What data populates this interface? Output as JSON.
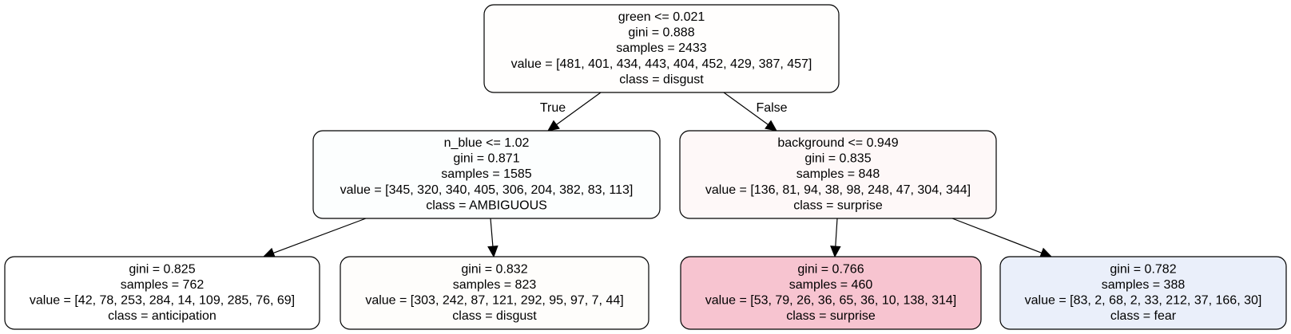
{
  "tree": {
    "nodes": [
      {
        "id": "root",
        "fill": "#fffefd",
        "lines": [
          "green <= 0.021",
          "gini = 0.888",
          "samples = 2433",
          "value = [481, 401, 434, 443, 404, 452, 429, 387, 457]",
          "class = disgust"
        ]
      },
      {
        "id": "left",
        "fill": "#fcfefe",
        "lines": [
          "n_blue <= 1.02",
          "gini = 0.871",
          "samples = 1585",
          "value = [345, 320, 340, 405, 306, 204, 382, 83, 113]",
          "class = AMBIGUOUS"
        ]
      },
      {
        "id": "right",
        "fill": "#fef8f8",
        "lines": [
          "background <= 0.949",
          "gini = 0.835",
          "samples = 848",
          "value = [136, 81, 94, 38, 98, 248, 47, 304, 344]",
          "class = surprise"
        ]
      },
      {
        "id": "leaf-1",
        "fill": "#ffffff",
        "lines": [
          "gini = 0.825",
          "samples = 762",
          "value = [42, 78, 253, 284, 14, 109, 285, 76, 69]",
          "class = anticipation"
        ]
      },
      {
        "id": "leaf-2",
        "fill": "#fefdfb",
        "lines": [
          "gini = 0.832",
          "samples = 823",
          "value = [303, 242, 87, 121, 292, 95, 97, 7, 44]",
          "class = disgust"
        ]
      },
      {
        "id": "leaf-3",
        "fill": "#f7c4d0",
        "lines": [
          "gini = 0.766",
          "samples = 460",
          "value = [53, 79, 26, 36, 65, 36, 10, 138, 314]",
          "class = surprise"
        ]
      },
      {
        "id": "leaf-4",
        "fill": "#eaeffa",
        "lines": [
          "gini = 0.782",
          "samples = 388",
          "value = [83, 2, 68, 2, 33, 212, 37, 166, 30]",
          "class = fear"
        ]
      }
    ],
    "edges": [
      {
        "from": "root",
        "to": "left",
        "label": "True"
      },
      {
        "from": "root",
        "to": "right",
        "label": "False"
      },
      {
        "from": "left",
        "to": "leaf-1",
        "label": ""
      },
      {
        "from": "left",
        "to": "leaf-2",
        "label": ""
      },
      {
        "from": "right",
        "to": "leaf-3",
        "label": ""
      },
      {
        "from": "right",
        "to": "leaf-4",
        "label": ""
      }
    ]
  }
}
